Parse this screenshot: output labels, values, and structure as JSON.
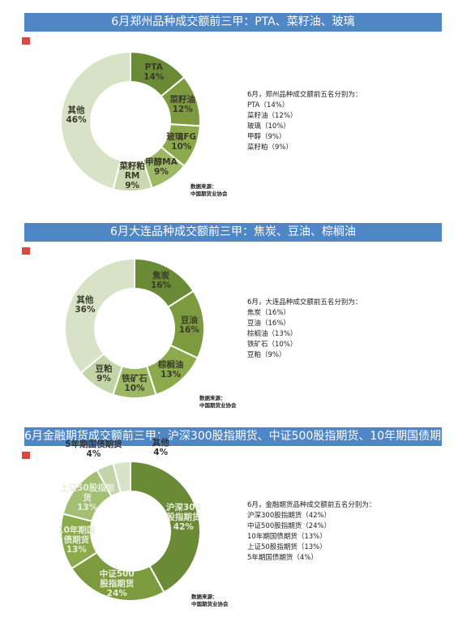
{
  "chart_data": [
    {
      "type": "donut",
      "title": "6月郑州品种成交额前三甲：PTA、菜籽油、玻璃",
      "categories": [
        "PTA",
        "菜籽油",
        "玻璃FG",
        "甲醇MA",
        "菜籽粕\nRM",
        "其他"
      ],
      "values": [
        14,
        12,
        10,
        9,
        9,
        46
      ],
      "value_labels": [
        "14%",
        "12%",
        "10%",
        "9%",
        "9%",
        "46%"
      ],
      "colors": [
        "#6b8a35",
        "#7c9b3f",
        "#8aaa4b",
        "#9bb862",
        "#c9d8b1",
        "#d8e2c7"
      ],
      "label_color": "#3a3a2a",
      "note_title": "6月，郑州品种成交额前五名分别为：",
      "note_lines": [
        "PTA（14%）",
        "菜籽油（12%）",
        "玻璃（10%）",
        "甲醇（9%）",
        "菜籽粕（9%）"
      ],
      "source": "数据来源：\n中国期货业协会"
    },
    {
      "type": "donut",
      "title": "6月大连品种成交额前三甲：焦炭、豆油、棕榈油",
      "categories": [
        "焦炭",
        "豆油",
        "棕榈油",
        "铁矿石",
        "豆粕",
        "其他"
      ],
      "values": [
        16,
        16,
        13,
        10,
        9,
        36
      ],
      "value_labels": [
        "16%",
        "16%",
        "13%",
        "10%",
        "9%",
        "36%"
      ],
      "colors": [
        "#6b8a35",
        "#7c9b3f",
        "#8aaa4b",
        "#9bb862",
        "#c3d4a8",
        "#d8e2c7"
      ],
      "label_color": "#3a3a2a",
      "note_title": "6月，大连品种成交额前五名分别为：",
      "note_lines": [
        "焦炭（16%）",
        "豆油（16%）",
        "棕榈油（13%）",
        "铁矿石（10%）",
        "豆粕（9%）"
      ],
      "source": "数据来源：\n中国期货业协会"
    },
    {
      "type": "donut",
      "title": "6月金融期货成交额前三甲：沪深300股指期货、中证500股指期货、10年期国债期货",
      "categories": [
        "沪深300\n股指期货",
        "中证500\n股指期货",
        "10年期国\n债期货",
        "上证50股指期\n货",
        "5年期国债期货",
        "其他"
      ],
      "values": [
        42,
        24,
        13,
        13,
        4,
        4
      ],
      "value_labels": [
        "42%",
        "24%",
        "13%",
        "13%",
        "4%",
        "4%"
      ],
      "colors": [
        "#6b8a35",
        "#7c9b3f",
        "#8aaa4b",
        "#a3bf73",
        "#c3d4a8",
        "#d8e2c7"
      ],
      "label_color": "#e8eedc",
      "note_title": "6月，金融期货品种成交额前五名分别为：",
      "note_lines": [
        "沪深300股指期货（42%）",
        "中证500股指期货（24%）",
        "10年期国债期货（13%）",
        "上证50股指期货（13%）",
        "5年期国债期货（4%）"
      ],
      "source": "数据来源：\n中国期货业协会"
    }
  ]
}
